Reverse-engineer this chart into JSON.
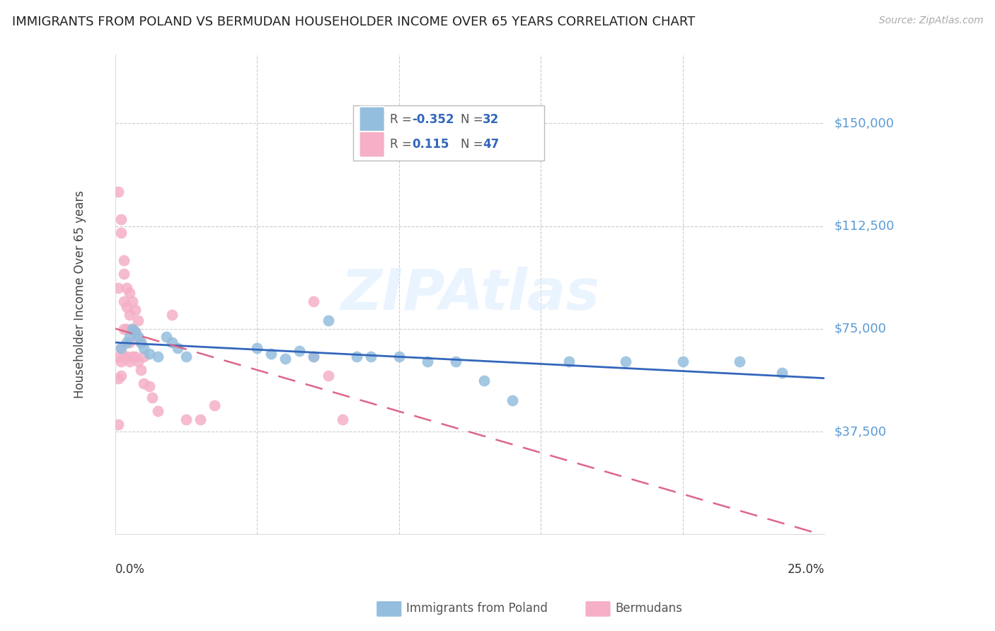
{
  "title": "IMMIGRANTS FROM POLAND VS BERMUDAN HOUSEHOLDER INCOME OVER 65 YEARS CORRELATION CHART",
  "source": "Source: ZipAtlas.com",
  "ylabel": "Householder Income Over 65 years",
  "xlim": [
    0.0,
    0.25
  ],
  "ylim": [
    0,
    175000
  ],
  "yticks": [
    37500,
    75000,
    112500,
    150000
  ],
  "ytick_labels": [
    "$37,500",
    "$75,000",
    "$112,500",
    "$150,000"
  ],
  "grid_color": "#cccccc",
  "background_color": "#ffffff",
  "poland_color": "#94bedd",
  "bermuda_color": "#f5afc6",
  "poland_line_color": "#3366bb",
  "bermuda_line_color": "#dd6688",
  "poland_x": [
    0.002,
    0.004,
    0.005,
    0.006,
    0.007,
    0.008,
    0.009,
    0.01,
    0.012,
    0.015,
    0.018,
    0.02,
    0.022,
    0.025,
    0.05,
    0.055,
    0.06,
    0.065,
    0.07,
    0.075,
    0.085,
    0.09,
    0.1,
    0.11,
    0.12,
    0.13,
    0.14,
    0.16,
    0.18,
    0.2,
    0.22,
    0.235
  ],
  "poland_y": [
    68000,
    70000,
    72000,
    75000,
    74000,
    72000,
    70000,
    68000,
    66000,
    65000,
    72000,
    70000,
    68000,
    65000,
    68000,
    66000,
    64000,
    67000,
    65000,
    78000,
    65000,
    65000,
    65000,
    63000,
    63000,
    56000,
    49000,
    63000,
    63000,
    63000,
    63000,
    59000
  ],
  "bermuda_x": [
    0.001,
    0.001,
    0.001,
    0.001,
    0.001,
    0.002,
    0.002,
    0.002,
    0.002,
    0.002,
    0.003,
    0.003,
    0.003,
    0.003,
    0.003,
    0.004,
    0.004,
    0.004,
    0.004,
    0.005,
    0.005,
    0.005,
    0.005,
    0.006,
    0.006,
    0.006,
    0.007,
    0.007,
    0.007,
    0.008,
    0.008,
    0.008,
    0.009,
    0.009,
    0.01,
    0.01,
    0.012,
    0.013,
    0.015,
    0.02,
    0.025,
    0.03,
    0.035,
    0.07,
    0.07,
    0.075,
    0.08
  ],
  "bermuda_y": [
    125000,
    90000,
    65000,
    57000,
    40000,
    115000,
    110000,
    68000,
    63000,
    58000,
    100000,
    95000,
    85000,
    75000,
    65000,
    90000,
    83000,
    75000,
    65000,
    88000,
    80000,
    70000,
    63000,
    85000,
    75000,
    65000,
    82000,
    74000,
    65000,
    78000,
    72000,
    63000,
    70000,
    60000,
    65000,
    55000,
    54000,
    50000,
    45000,
    80000,
    42000,
    42000,
    47000,
    85000,
    65000,
    58000,
    42000
  ]
}
